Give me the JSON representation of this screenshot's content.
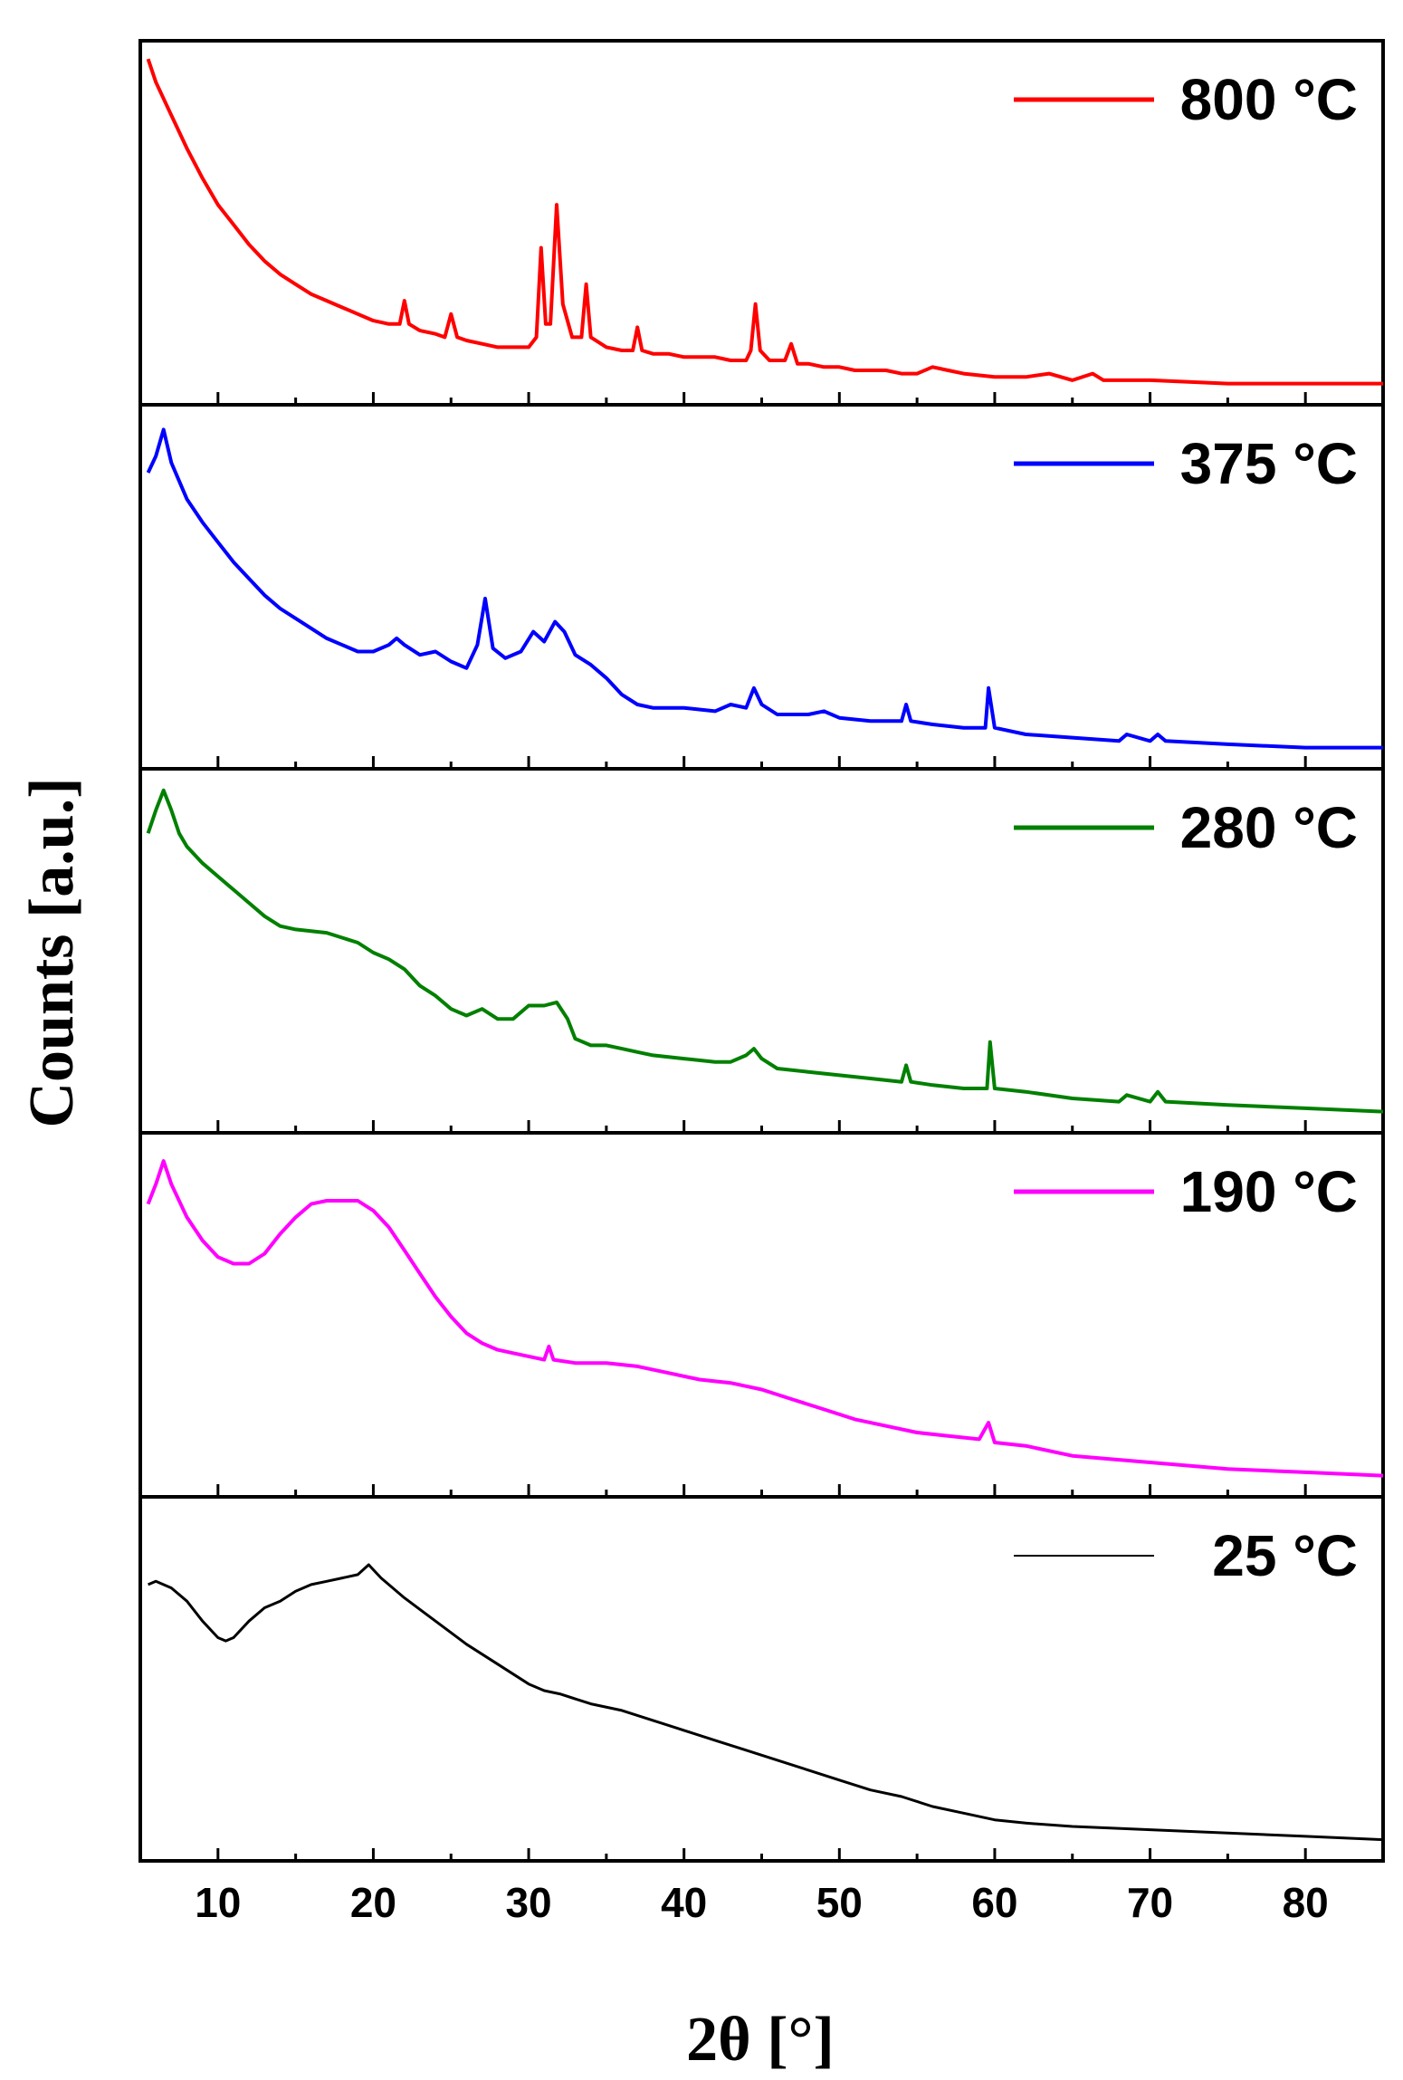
{
  "chart_data": {
    "type": "line",
    "xlabel": "2θ [°]",
    "ylabel": "Counts [a.u.]",
    "xlim": [
      5,
      85
    ],
    "xticks": [
      10,
      20,
      30,
      40,
      50,
      60,
      70,
      80
    ],
    "x_minor_step": 5,
    "y_ticks_shown": false,
    "legend_position": "top-right of each panel",
    "panels": [
      {
        "name": "800 °C",
        "color": "#ff0000",
        "points": [
          [
            5.5,
            1.0
          ],
          [
            6,
            0.93
          ],
          [
            7,
            0.83
          ],
          [
            8,
            0.73
          ],
          [
            9,
            0.64
          ],
          [
            10,
            0.56
          ],
          [
            11,
            0.5
          ],
          [
            12,
            0.44
          ],
          [
            13,
            0.39
          ],
          [
            14,
            0.35
          ],
          [
            15,
            0.32
          ],
          [
            16,
            0.29
          ],
          [
            17,
            0.27
          ],
          [
            18,
            0.25
          ],
          [
            19,
            0.23
          ],
          [
            20,
            0.21
          ],
          [
            21,
            0.2
          ],
          [
            21.7,
            0.2
          ],
          [
            22,
            0.27
          ],
          [
            22.3,
            0.2
          ],
          [
            23,
            0.18
          ],
          [
            24,
            0.17
          ],
          [
            24.6,
            0.16
          ],
          [
            25,
            0.23
          ],
          [
            25.4,
            0.16
          ],
          [
            26,
            0.15
          ],
          [
            27,
            0.14
          ],
          [
            28,
            0.13
          ],
          [
            29,
            0.13
          ],
          [
            30,
            0.13
          ],
          [
            30.5,
            0.16
          ],
          [
            30.8,
            0.43
          ],
          [
            31.1,
            0.2
          ],
          [
            31.4,
            0.2
          ],
          [
            31.8,
            0.56
          ],
          [
            32.2,
            0.26
          ],
          [
            32.8,
            0.16
          ],
          [
            33.4,
            0.16
          ],
          [
            33.7,
            0.32
          ],
          [
            34,
            0.16
          ],
          [
            35,
            0.13
          ],
          [
            36,
            0.12
          ],
          [
            36.7,
            0.12
          ],
          [
            37,
            0.19
          ],
          [
            37.3,
            0.12
          ],
          [
            38,
            0.11
          ],
          [
            39,
            0.11
          ],
          [
            40,
            0.1
          ],
          [
            41,
            0.1
          ],
          [
            42,
            0.1
          ],
          [
            43,
            0.09
          ],
          [
            44,
            0.09
          ],
          [
            44.3,
            0.12
          ],
          [
            44.6,
            0.26
          ],
          [
            44.9,
            0.12
          ],
          [
            45.5,
            0.09
          ],
          [
            46.5,
            0.09
          ],
          [
            46.9,
            0.14
          ],
          [
            47.3,
            0.08
          ],
          [
            48,
            0.08
          ],
          [
            49,
            0.07
          ],
          [
            50,
            0.07
          ],
          [
            51,
            0.06
          ],
          [
            52,
            0.06
          ],
          [
            53,
            0.06
          ],
          [
            54,
            0.05
          ],
          [
            55,
            0.05
          ],
          [
            56,
            0.07
          ],
          [
            57,
            0.06
          ],
          [
            58,
            0.05
          ],
          [
            60,
            0.04
          ],
          [
            62,
            0.04
          ],
          [
            63.5,
            0.05
          ],
          [
            65,
            0.03
          ],
          [
            66.3,
            0.05
          ],
          [
            67,
            0.03
          ],
          [
            70,
            0.03
          ],
          [
            75,
            0.02
          ],
          [
            80,
            0.02
          ],
          [
            85,
            0.02
          ]
        ]
      },
      {
        "name": "375 °C",
        "color": "#0000ff",
        "points": [
          [
            5.5,
            0.85
          ],
          [
            6,
            0.9
          ],
          [
            6.5,
            0.98
          ],
          [
            7,
            0.88
          ],
          [
            8,
            0.77
          ],
          [
            9,
            0.7
          ],
          [
            10,
            0.64
          ],
          [
            11,
            0.58
          ],
          [
            12,
            0.53
          ],
          [
            13,
            0.48
          ],
          [
            14,
            0.44
          ],
          [
            15,
            0.41
          ],
          [
            16,
            0.38
          ],
          [
            17,
            0.35
          ],
          [
            18,
            0.33
          ],
          [
            19,
            0.31
          ],
          [
            20,
            0.31
          ],
          [
            21,
            0.33
          ],
          [
            21.5,
            0.35
          ],
          [
            22,
            0.33
          ],
          [
            23,
            0.3
          ],
          [
            24,
            0.31
          ],
          [
            25,
            0.28
          ],
          [
            26,
            0.26
          ],
          [
            26.7,
            0.33
          ],
          [
            27.2,
            0.47
          ],
          [
            27.7,
            0.32
          ],
          [
            28.5,
            0.29
          ],
          [
            29.5,
            0.31
          ],
          [
            30.3,
            0.37
          ],
          [
            31,
            0.34
          ],
          [
            31.7,
            0.4
          ],
          [
            32.3,
            0.37
          ],
          [
            33,
            0.3
          ],
          [
            34,
            0.27
          ],
          [
            35,
            0.23
          ],
          [
            36,
            0.18
          ],
          [
            37,
            0.15
          ],
          [
            38,
            0.14
          ],
          [
            40,
            0.14
          ],
          [
            42,
            0.13
          ],
          [
            43,
            0.15
          ],
          [
            44,
            0.14
          ],
          [
            44.5,
            0.2
          ],
          [
            45,
            0.15
          ],
          [
            46,
            0.12
          ],
          [
            48,
            0.12
          ],
          [
            49,
            0.13
          ],
          [
            50,
            0.11
          ],
          [
            52,
            0.1
          ],
          [
            54,
            0.1
          ],
          [
            54.3,
            0.15
          ],
          [
            54.6,
            0.1
          ],
          [
            56,
            0.09
          ],
          [
            58,
            0.08
          ],
          [
            59.4,
            0.08
          ],
          [
            59.6,
            0.2
          ],
          [
            60,
            0.08
          ],
          [
            62,
            0.06
          ],
          [
            65,
            0.05
          ],
          [
            68,
            0.04
          ],
          [
            68.5,
            0.06
          ],
          [
            70,
            0.04
          ],
          [
            70.5,
            0.06
          ],
          [
            71,
            0.04
          ],
          [
            75,
            0.03
          ],
          [
            80,
            0.02
          ],
          [
            85,
            0.02
          ]
        ]
      },
      {
        "name": "280 °C",
        "color": "#008000",
        "points": [
          [
            5.5,
            0.86
          ],
          [
            6,
            0.93
          ],
          [
            6.5,
            0.99
          ],
          [
            7,
            0.93
          ],
          [
            7.5,
            0.86
          ],
          [
            8,
            0.82
          ],
          [
            9,
            0.77
          ],
          [
            10,
            0.73
          ],
          [
            11,
            0.69
          ],
          [
            12,
            0.65
          ],
          [
            13,
            0.61
          ],
          [
            14,
            0.58
          ],
          [
            15,
            0.57
          ],
          [
            17,
            0.56
          ],
          [
            19,
            0.53
          ],
          [
            20,
            0.5
          ],
          [
            21,
            0.48
          ],
          [
            22,
            0.45
          ],
          [
            23,
            0.4
          ],
          [
            24,
            0.37
          ],
          [
            25,
            0.33
          ],
          [
            26,
            0.31
          ],
          [
            27,
            0.33
          ],
          [
            28,
            0.3
          ],
          [
            29,
            0.3
          ],
          [
            30,
            0.34
          ],
          [
            31,
            0.34
          ],
          [
            31.8,
            0.35
          ],
          [
            32.5,
            0.3
          ],
          [
            33,
            0.24
          ],
          [
            34,
            0.22
          ],
          [
            35,
            0.22
          ],
          [
            36,
            0.21
          ],
          [
            37,
            0.2
          ],
          [
            38,
            0.19
          ],
          [
            40,
            0.18
          ],
          [
            42,
            0.17
          ],
          [
            43,
            0.17
          ],
          [
            44,
            0.19
          ],
          [
            44.5,
            0.21
          ],
          [
            45,
            0.18
          ],
          [
            46,
            0.15
          ],
          [
            48,
            0.14
          ],
          [
            50,
            0.13
          ],
          [
            52,
            0.12
          ],
          [
            54,
            0.11
          ],
          [
            54.3,
            0.16
          ],
          [
            54.6,
            0.11
          ],
          [
            56,
            0.1
          ],
          [
            58,
            0.09
          ],
          [
            59.5,
            0.09
          ],
          [
            59.7,
            0.23
          ],
          [
            60,
            0.09
          ],
          [
            62,
            0.08
          ],
          [
            65,
            0.06
          ],
          [
            68,
            0.05
          ],
          [
            68.5,
            0.07
          ],
          [
            70,
            0.05
          ],
          [
            70.5,
            0.08
          ],
          [
            71,
            0.05
          ],
          [
            75,
            0.04
          ],
          [
            80,
            0.03
          ],
          [
            85,
            0.02
          ]
        ]
      },
      {
        "name": "190 °C",
        "color": "#ff00ff",
        "points": [
          [
            5.5,
            0.84
          ],
          [
            6,
            0.9
          ],
          [
            6.5,
            0.97
          ],
          [
            7,
            0.9
          ],
          [
            8,
            0.8
          ],
          [
            9,
            0.73
          ],
          [
            10,
            0.68
          ],
          [
            11,
            0.66
          ],
          [
            12,
            0.66
          ],
          [
            13,
            0.69
          ],
          [
            14,
            0.75
          ],
          [
            15,
            0.8
          ],
          [
            16,
            0.84
          ],
          [
            17,
            0.85
          ],
          [
            18,
            0.85
          ],
          [
            19,
            0.85
          ],
          [
            20,
            0.82
          ],
          [
            21,
            0.77
          ],
          [
            22,
            0.7
          ],
          [
            23,
            0.63
          ],
          [
            24,
            0.56
          ],
          [
            25,
            0.5
          ],
          [
            26,
            0.45
          ],
          [
            27,
            0.42
          ],
          [
            28,
            0.4
          ],
          [
            29,
            0.39
          ],
          [
            30,
            0.38
          ],
          [
            31,
            0.37
          ],
          [
            31.3,
            0.41
          ],
          [
            31.6,
            0.37
          ],
          [
            33,
            0.36
          ],
          [
            35,
            0.36
          ],
          [
            37,
            0.35
          ],
          [
            39,
            0.33
          ],
          [
            41,
            0.31
          ],
          [
            43,
            0.3
          ],
          [
            44,
            0.29
          ],
          [
            45,
            0.28
          ],
          [
            47,
            0.25
          ],
          [
            49,
            0.22
          ],
          [
            51,
            0.19
          ],
          [
            53,
            0.17
          ],
          [
            55,
            0.15
          ],
          [
            57,
            0.14
          ],
          [
            59,
            0.13
          ],
          [
            59.6,
            0.18
          ],
          [
            60,
            0.12
          ],
          [
            62,
            0.11
          ],
          [
            65,
            0.08
          ],
          [
            70,
            0.06
          ],
          [
            75,
            0.04
          ],
          [
            80,
            0.03
          ],
          [
            85,
            0.02
          ]
        ]
      },
      {
        "name": "25 °C",
        "color": "#000000",
        "points": [
          [
            5.5,
            0.79
          ],
          [
            6,
            0.8
          ],
          [
            7,
            0.78
          ],
          [
            8,
            0.74
          ],
          [
            9,
            0.68
          ],
          [
            10,
            0.63
          ],
          [
            10.5,
            0.62
          ],
          [
            11,
            0.63
          ],
          [
            12,
            0.68
          ],
          [
            13,
            0.72
          ],
          [
            14,
            0.74
          ],
          [
            15,
            0.77
          ],
          [
            16,
            0.79
          ],
          [
            17,
            0.8
          ],
          [
            18,
            0.81
          ],
          [
            19,
            0.82
          ],
          [
            19.7,
            0.85
          ],
          [
            20.5,
            0.81
          ],
          [
            22,
            0.75
          ],
          [
            24,
            0.68
          ],
          [
            26,
            0.61
          ],
          [
            28,
            0.55
          ],
          [
            30,
            0.49
          ],
          [
            31,
            0.47
          ],
          [
            32,
            0.46
          ],
          [
            34,
            0.43
          ],
          [
            36,
            0.41
          ],
          [
            38,
            0.38
          ],
          [
            40,
            0.35
          ],
          [
            42,
            0.32
          ],
          [
            44,
            0.29
          ],
          [
            46,
            0.26
          ],
          [
            48,
            0.23
          ],
          [
            50,
            0.2
          ],
          [
            52,
            0.17
          ],
          [
            54,
            0.15
          ],
          [
            56,
            0.12
          ],
          [
            58,
            0.1
          ],
          [
            60,
            0.08
          ],
          [
            62,
            0.07
          ],
          [
            65,
            0.06
          ],
          [
            70,
            0.05
          ],
          [
            75,
            0.04
          ],
          [
            80,
            0.03
          ],
          [
            85,
            0.02
          ]
        ]
      }
    ]
  }
}
